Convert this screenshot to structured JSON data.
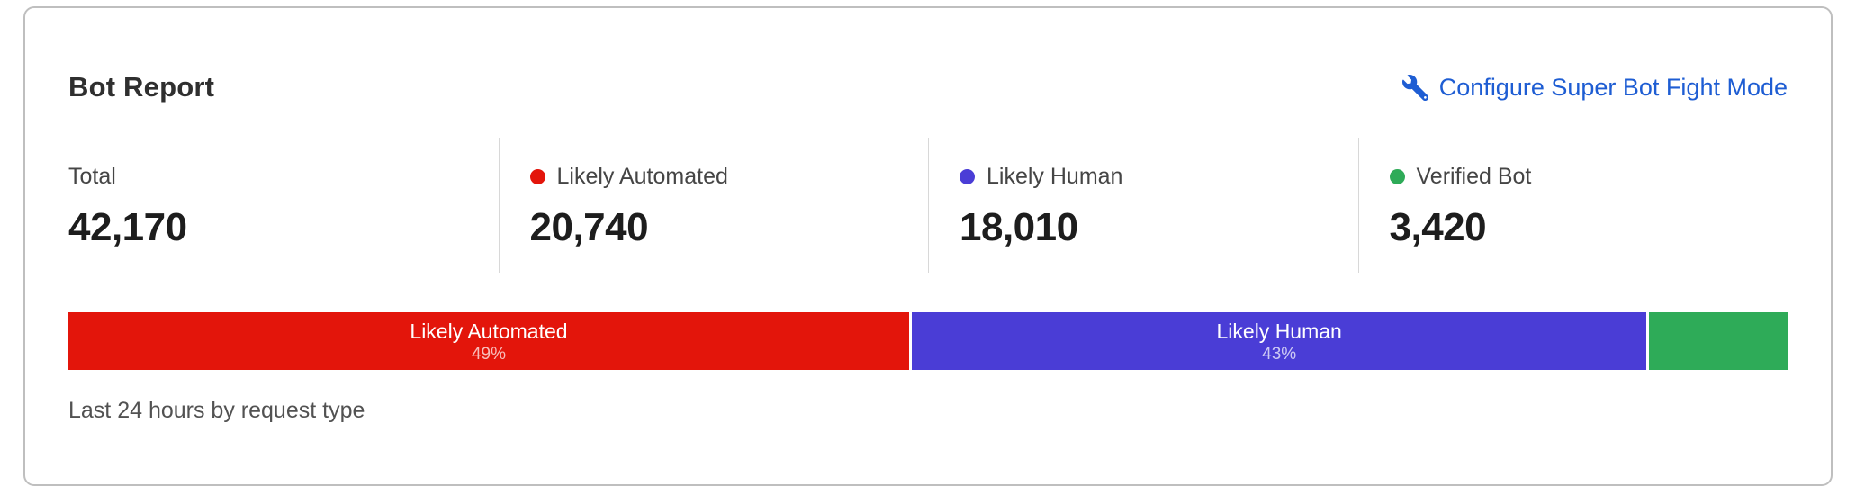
{
  "card": {
    "title": "Bot Report",
    "action_label": "Configure Super Bot Fight Mode",
    "caption": "Last 24 hours by request type"
  },
  "stats": {
    "items": [
      {
        "label": "Total",
        "value": "42,170"
      },
      {
        "label": "Likely Automated",
        "value": "20,740",
        "color": "#e3150b"
      },
      {
        "label": "Likely Human",
        "value": "18,010",
        "color": "#4a3dd6"
      },
      {
        "label": "Verified Bot",
        "value": "3,420",
        "color": "#2eab58"
      }
    ]
  },
  "bar": {
    "segments": [
      {
        "label": "Likely Automated",
        "pct": "49%",
        "width": 48.9,
        "color": "#e3150b"
      },
      {
        "label": "Likely Human",
        "pct": "43%",
        "width": 42.9,
        "color": "#4a3dd6"
      },
      {
        "label": "",
        "pct": "",
        "width": 8.2,
        "color": "#2eab58"
      }
    ]
  },
  "chart_data": {
    "type": "bar",
    "variant": "horizontal-stacked-percentage",
    "title": "Bot Report",
    "subtitle": "Last 24 hours by request type",
    "categories": [
      "Likely Automated",
      "Likely Human",
      "Verified Bot"
    ],
    "values": [
      20740,
      18010,
      3420
    ],
    "total": 42170,
    "percent_labels": [
      "49%",
      "43%",
      null
    ],
    "colors": [
      "#e3150b",
      "#4a3dd6",
      "#2eab58"
    ],
    "legend_position": "stats-row-above-bar",
    "grid": false
  },
  "colors": {
    "link_blue": "#1e5dd3",
    "automated_red": "#e3150b",
    "human_purple": "#4a3dd6",
    "verified_green": "#2eab58",
    "card_border": "#bfbfbf",
    "divider": "#d8d8d8"
  }
}
